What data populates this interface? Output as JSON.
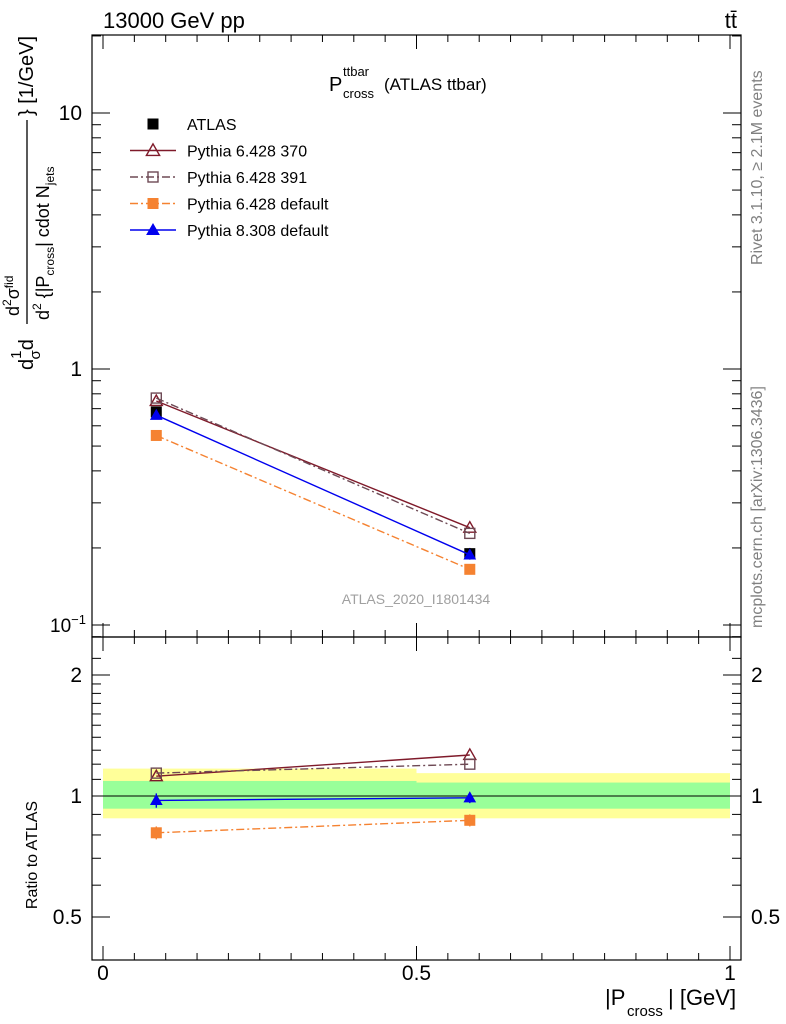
{
  "header": {
    "energy_label": "13000 GeV pp",
    "process_label": "tt̄"
  },
  "plot_title": {
    "main": "P",
    "sup": "ttbar",
    "sub": "cross",
    "suffix": "(ATLAS ttbar)"
  },
  "side_labels": {
    "rivet": "Rivet 3.1.10, ≥ 2.1M events",
    "mcplots": "mcplots.cern.ch [arXiv:1306.3436]"
  },
  "watermark": "ATLAS_2020_I1801434",
  "axes": {
    "ylabel_main": "d²σ / d²{|P_cross| cdot N_jets} [1/GeV]",
    "ylabel_ratio": "Ratio to ATLAS",
    "xlabel_main": "|P",
    "xlabel_sub": "cross",
    "xlabel_suffix": "| [GeV]"
  },
  "chart_data": [
    {
      "type": "scatter",
      "panel": "main",
      "y_scale": "log",
      "xlim": [
        0,
        1
      ],
      "ylim": [
        0.085,
        20
      ],
      "x_ticks": [
        "0",
        "0.5",
        "1"
      ],
      "y_ticks": [
        {
          "value": 0.1,
          "base": "10",
          "exp": "−1"
        },
        {
          "value": 1,
          "label": "1"
        },
        {
          "value": 10,
          "label": "10"
        }
      ],
      "legend_placement": "top-left",
      "series": [
        {
          "name": "ATLAS",
          "color": "#000000",
          "marker": "square-filled",
          "dash": "none",
          "line": false,
          "points": [
            {
              "x": 0.085,
              "y": 0.68,
              "err": 0.03
            },
            {
              "x": 0.585,
              "y": 0.19,
              "err": 0.01
            }
          ]
        },
        {
          "name": "Pythia 6.428 370",
          "color": "#7f1a2a",
          "marker": "triangle-open",
          "dash": "none",
          "line": true,
          "points": [
            {
              "x": 0.085,
              "y": 0.75
            },
            {
              "x": 0.585,
              "y": 0.24
            }
          ]
        },
        {
          "name": "Pythia 6.428 391",
          "color": "#6e4a55",
          "marker": "square-open",
          "dash": "8,3,2,3",
          "line": true,
          "points": [
            {
              "x": 0.085,
              "y": 0.77
            },
            {
              "x": 0.585,
              "y": 0.228
            }
          ]
        },
        {
          "name": "Pythia 6.428 default",
          "color": "#f58231",
          "marker": "square-filled",
          "dash": "8,3,2,3",
          "line": true,
          "points": [
            {
              "x": 0.085,
              "y": 0.55
            },
            {
              "x": 0.585,
              "y": 0.165
            }
          ]
        },
        {
          "name": "Pythia 8.308 default",
          "color": "#0000ee",
          "marker": "triangle-filled",
          "dash": "none",
          "line": true,
          "points": [
            {
              "x": 0.085,
              "y": 0.66
            },
            {
              "x": 0.585,
              "y": 0.188
            }
          ]
        }
      ]
    },
    {
      "type": "scatter",
      "panel": "ratio",
      "y_scale": "log",
      "xlim": [
        0,
        1
      ],
      "ylim": [
        0.4,
        2.4
      ],
      "x_ticks": [
        "0",
        "0.5",
        "1"
      ],
      "y_ticks": [
        {
          "value": 0.5,
          "label": "0.5"
        },
        {
          "value": 1,
          "label": "1"
        },
        {
          "value": 2,
          "label": "2"
        }
      ],
      "bands": [
        {
          "color": "#ffff99",
          "segments": [
            {
              "x0": 0,
              "x1": 0.5,
              "lo": 0.88,
              "hi": 1.17
            },
            {
              "x0": 0.5,
              "x1": 1,
              "lo": 0.88,
              "hi": 1.14
            }
          ]
        },
        {
          "color": "#99ff99",
          "segments": [
            {
              "x0": 0,
              "x1": 0.5,
              "lo": 0.93,
              "hi": 1.09
            },
            {
              "x0": 0.5,
              "x1": 1,
              "lo": 0.93,
              "hi": 1.08
            }
          ]
        }
      ],
      "series": [
        {
          "name": "Pythia 6.428 370",
          "color": "#7f1a2a",
          "marker": "triangle-open",
          "dash": "none",
          "points": [
            {
              "x": 0.085,
              "y": 1.12
            },
            {
              "x": 0.585,
              "y": 1.265
            }
          ]
        },
        {
          "name": "Pythia 6.428 391",
          "color": "#6e4a55",
          "marker": "square-open",
          "dash": "8,3,2,3",
          "points": [
            {
              "x": 0.085,
              "y": 1.14
            },
            {
              "x": 0.585,
              "y": 1.2
            }
          ]
        },
        {
          "name": "Pythia 6.428 default",
          "color": "#f58231",
          "marker": "square-filled",
          "dash": "8,3,2,3",
          "points": [
            {
              "x": 0.085,
              "y": 0.81,
              "err": 0.03
            },
            {
              "x": 0.585,
              "y": 0.87,
              "err": 0.03
            }
          ]
        },
        {
          "name": "Pythia 8.308 default",
          "color": "#0000ee",
          "marker": "triangle-filled",
          "dash": "none",
          "points": [
            {
              "x": 0.085,
              "y": 0.975,
              "err": 0.04
            },
            {
              "x": 0.585,
              "y": 0.99,
              "err": 0.03
            }
          ]
        }
      ]
    }
  ]
}
